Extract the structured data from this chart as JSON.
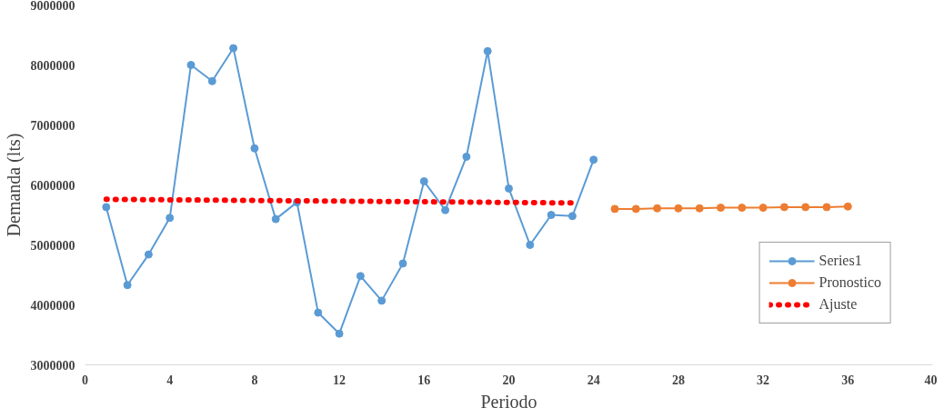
{
  "chart_data": {
    "type": "line",
    "xlabel": "Periodo",
    "ylabel": "Demanda (lts)",
    "xlim": [
      0,
      40
    ],
    "xticks": [
      0,
      4,
      8,
      12,
      16,
      20,
      24,
      28,
      32,
      36,
      40
    ],
    "ylim": [
      3000000,
      9000000
    ],
    "yticks": [
      3000000,
      4000000,
      5000000,
      6000000,
      7000000,
      8000000,
      9000000
    ],
    "grid": false,
    "legend": "bottom right",
    "series": [
      {
        "name": "Series1",
        "color": "#5b9bd5",
        "marker": "circle",
        "line_style": "solid",
        "x": [
          1,
          2,
          3,
          4,
          5,
          6,
          7,
          8,
          9,
          10,
          11,
          12,
          13,
          14,
          15,
          16,
          17,
          18,
          19,
          20,
          21,
          22,
          23,
          24
        ],
        "values": [
          5630000,
          4330000,
          4840000,
          5450000,
          8000000,
          7730000,
          8280000,
          6610000,
          5430000,
          5710000,
          3870000,
          3520000,
          4480000,
          4070000,
          4690000,
          6060000,
          5580000,
          6470000,
          8230000,
          5940000,
          5000000,
          5500000,
          5480000,
          6420000
        ]
      },
      {
        "name": "Pronostico",
        "color": "#ed7d31",
        "marker": "circle",
        "line_style": "solid",
        "x": [
          25,
          26,
          27,
          28,
          29,
          30,
          31,
          32,
          33,
          34,
          35,
          36
        ],
        "values": [
          5600000,
          5600000,
          5610000,
          5610000,
          5610000,
          5620000,
          5620000,
          5620000,
          5630000,
          5630000,
          5630000,
          5640000
        ]
      },
      {
        "name": "Ajuste",
        "color": "#ff0000",
        "marker": "none",
        "line_style": "dotted",
        "x": [
          1,
          23
        ],
        "values": [
          5760000,
          5700000
        ]
      }
    ]
  }
}
